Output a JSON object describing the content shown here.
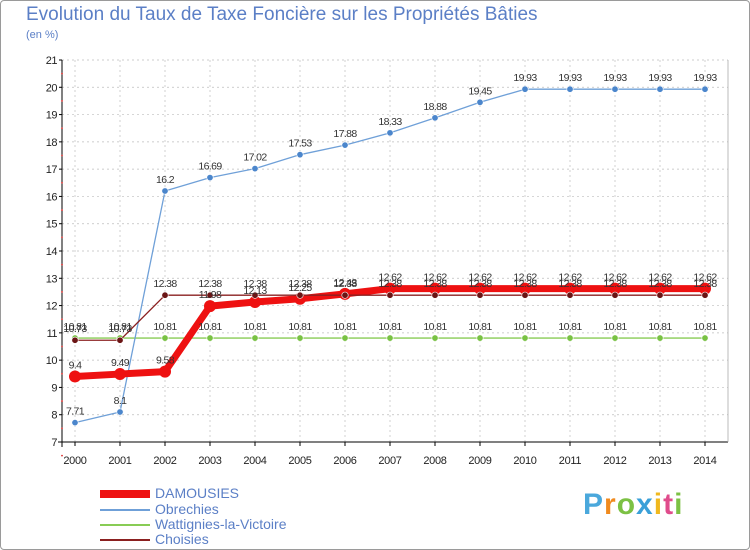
{
  "colors": {
    "title": "#5b7fc6",
    "axis": "#000000",
    "grid": "#bdbdbd",
    "background": "#ffffff"
  },
  "chart_data": {
    "type": "line",
    "title": "Evolution du Taux de Taxe Foncière sur les Propriétés Bâties",
    "unit_label": "(en %)",
    "xlabel": "",
    "ylabel": "",
    "ylim": [
      7,
      21
    ],
    "grid": true,
    "legend_position": "bottom-left",
    "x": [
      "2000",
      "2001",
      "2002",
      "2003",
      "2004",
      "2005",
      "2006",
      "2007",
      "2008",
      "2009",
      "2010",
      "2011",
      "2012",
      "2013",
      "2014"
    ],
    "y_ticks": [
      "7",
      "8",
      "9",
      "10",
      "11",
      "12",
      "13",
      "14",
      "15",
      "16",
      "17",
      "18",
      "19",
      "20",
      "21"
    ],
    "series": [
      {
        "name": "Wattignies-la-Victoire",
        "color": "#88cc55",
        "marker_color": "#79c244",
        "line_width": 1.3,
        "marker_radius": 3.2,
        "label_position": "above",
        "values": [
          10.81,
          10.81,
          10.81,
          10.81,
          10.81,
          10.81,
          10.81,
          10.81,
          10.81,
          10.81,
          10.81,
          10.81,
          10.81,
          10.81,
          10.81
        ],
        "labels": [
          "10.81",
          "10.81",
          "10.81",
          "10.81",
          "10.81",
          "10.81",
          "10.81",
          "10.81",
          "10.81",
          "10.81",
          "10.81",
          "10.81",
          "10.81",
          "10.81",
          "10.81"
        ]
      },
      {
        "name": "Obrechies",
        "color": "#6fa0d8",
        "marker_color": "#4b86cc",
        "line_width": 1.3,
        "marker_radius": 3.2,
        "label_position": "above",
        "values": [
          7.71,
          8.1,
          16.2,
          16.69,
          17.02,
          17.53,
          17.88,
          18.33,
          18.88,
          19.45,
          19.93,
          19.93,
          19.93,
          19.93,
          19.93
        ],
        "labels": [
          "7.71",
          "8.1",
          "16.2",
          "16.69",
          "17.02",
          "17.53",
          "17.88",
          "18.33",
          "18.88",
          "19.45",
          "19.93",
          "19.93",
          "19.93",
          "19.93",
          "19.93"
        ]
      },
      {
        "name": "DAMOUSIES",
        "color": "#ee1111",
        "marker_color": "#ee1111",
        "line_width": 7,
        "marker_radius": 6,
        "label_position": "above",
        "values": [
          9.4,
          9.49,
          9.58,
          11.98,
          12.13,
          12.25,
          12.43,
          12.62,
          12.62,
          12.62,
          12.62,
          12.62,
          12.62,
          12.62,
          12.62
        ],
        "labels": [
          "9.4",
          "9.49",
          "9.58",
          "11.98",
          "12.13",
          "12.25",
          "12.43",
          "12.62",
          "12.62",
          "12.62",
          "12.62",
          "12.62",
          "12.62",
          "12.62",
          "12.62"
        ]
      },
      {
        "name": "Choisies",
        "color": "#8b2020",
        "marker_color": "#6b1515",
        "line_width": 1.3,
        "marker_radius": 3.2,
        "label_position": "above",
        "values": [
          10.73,
          10.73,
          12.38,
          12.38,
          12.38,
          12.38,
          12.38,
          12.38,
          12.38,
          12.38,
          12.38,
          12.38,
          12.38,
          12.38,
          12.38
        ],
        "labels": [
          "10.73",
          "10.73",
          "12.38",
          "12.38",
          "12.38",
          "12.38",
          "12.38",
          "12.38",
          "12.38",
          "12.38",
          "12.38",
          "12.38",
          "12.38",
          "12.38",
          "12.38"
        ]
      }
    ],
    "legend": [
      {
        "name": "DAMOUSIES",
        "color": "#ee1111",
        "line_width": 8
      },
      {
        "name": "Obrechies",
        "color": "#6fa0d8",
        "line_width": 1.5
      },
      {
        "name": "Wattignies-la-Victoire",
        "color": "#88cc55",
        "line_width": 1.5
      },
      {
        "name": "Choisies",
        "color": "#8b2020",
        "line_width": 1.5
      }
    ]
  },
  "brand": {
    "letters": [
      "P",
      "r",
      "o",
      "x",
      "i",
      "t",
      "i"
    ],
    "colors": [
      "#4aa8dc",
      "#f08a1e",
      "#7cc144",
      "#3aa0d8",
      "#f0b81e",
      "#e04c8c",
      "#7cc144"
    ]
  }
}
